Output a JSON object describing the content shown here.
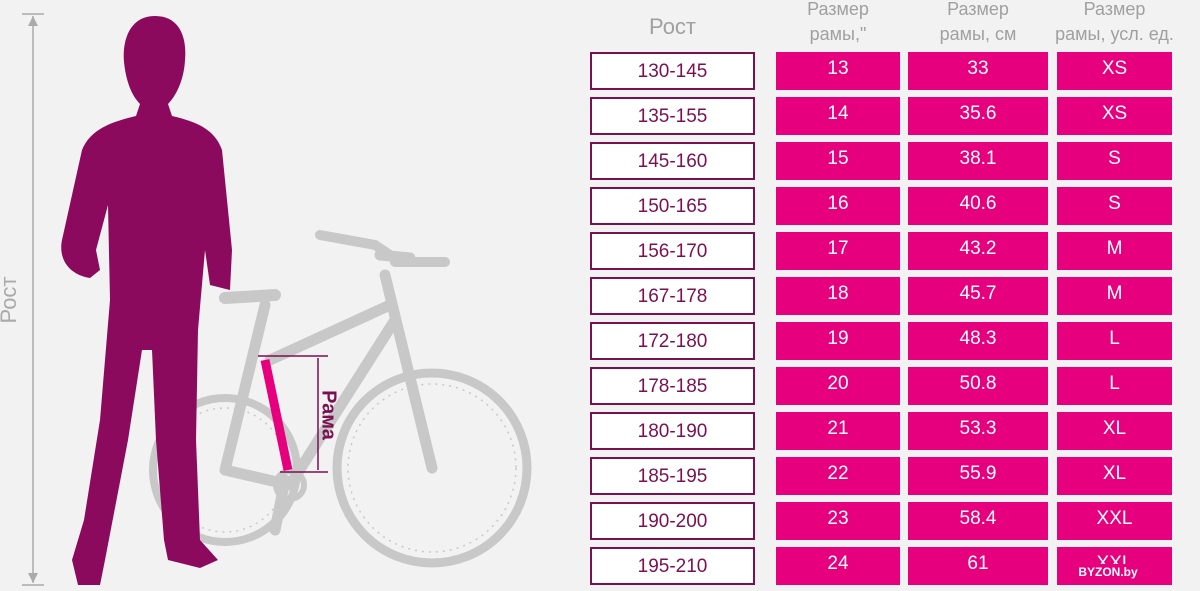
{
  "side_labels": {
    "height": "Рост",
    "frame": "Рама"
  },
  "watermark": "BYZON.by",
  "table": {
    "header": [
      [
        "Рост"
      ],
      [
        "Размер",
        "рамы,\""
      ],
      [
        "Размер",
        "рамы, см"
      ],
      [
        "Размер",
        "рамы, усл. ед."
      ]
    ],
    "rows": [
      [
        "130-145",
        "13",
        "33",
        "XS"
      ],
      [
        "135-155",
        "14",
        "35.6",
        "XS"
      ],
      [
        "145-160",
        "15",
        "38.1",
        "S"
      ],
      [
        "150-165",
        "16",
        "40.6",
        "S"
      ],
      [
        "156-170",
        "17",
        "43.2",
        "M"
      ],
      [
        "167-178",
        "18",
        "45.7",
        "M"
      ],
      [
        "172-180",
        "19",
        "48.3",
        "L"
      ],
      [
        "178-185",
        "20",
        "50.8",
        "L"
      ],
      [
        "180-190",
        "21",
        "53.3",
        "XL"
      ],
      [
        "185-195",
        "22",
        "55.9",
        "XL"
      ],
      [
        "190-200",
        "23",
        "58.4",
        "XXL"
      ],
      [
        "195-210",
        "24",
        "61",
        "XXL"
      ]
    ]
  }
}
